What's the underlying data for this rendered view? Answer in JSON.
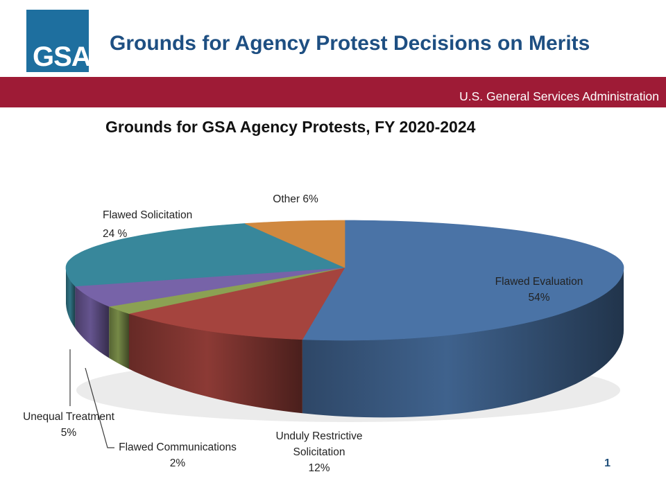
{
  "header": {
    "logo_text": "GSA",
    "title": "Grounds for Agency Protest Decisions on Merits",
    "banner_text": "U.S. General Services Administration"
  },
  "page_number": "1",
  "colors": {
    "banner_maroon": "#9e1b36",
    "header_title_blue": "#1e4f82",
    "logo_blue": "#1e6f9f",
    "page_number_blue": "#1f4e79"
  },
  "chart_data": {
    "type": "pie",
    "style": "3d",
    "title": "Grounds for GSA Agency Protests, FY 2020-2024",
    "legend_position": "none",
    "start_angle": "12 o'clock, clockwise",
    "slices": [
      {
        "label": "Flawed Evaluation",
        "pct_label": "54%",
        "value": 54,
        "color": "#4a73a6"
      },
      {
        "label": "Unduly Restrictive Solicitation",
        "pct_label": "12%",
        "value": 12,
        "color": "#a5443e"
      },
      {
        "label": "Flawed Communications",
        "pct_label": "2%",
        "value": 2,
        "color": "#8ba153"
      },
      {
        "label": "Unequal Treatment",
        "pct_label": "5%",
        "value": 5,
        "color": "#7763a8"
      },
      {
        "label": "Flawed Solicitation",
        "pct_label": "24 %",
        "value": 24,
        "color": "#38879b"
      },
      {
        "label": "Other",
        "pct_label": "6%",
        "value": 6,
        "color": "#d0883f"
      }
    ]
  }
}
